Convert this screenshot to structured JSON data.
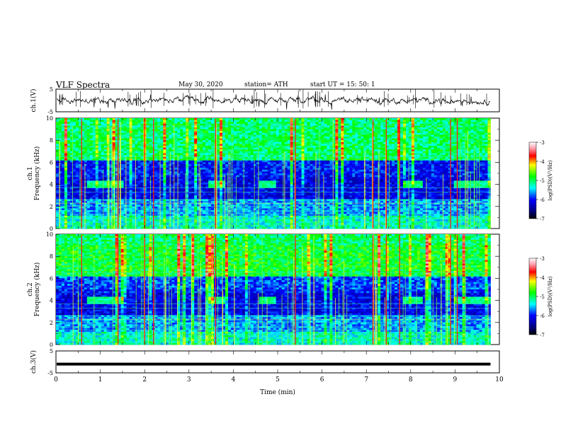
{
  "header": {
    "title": "VLF Spectra",
    "date": "May 30, 2020",
    "station": "station= ATH",
    "start": "start  UT  =    15: 50: 1"
  },
  "chart_data": [
    {
      "id": "ch1-waveform",
      "type": "line",
      "ylabel": "ch.1(V)",
      "ylim": [
        -5,
        5
      ],
      "yticks": [
        "5",
        "-5"
      ],
      "xlim": [
        0,
        10
      ],
      "description_mean_level": 0
    },
    {
      "id": "ch1-spectrogram",
      "type": "heatmap",
      "ylabel": "ch.1\nFrequency (kHz)",
      "ylim": [
        0,
        10
      ],
      "yticks": [
        "10",
        "8",
        "6",
        "4",
        "2",
        "0"
      ],
      "xlim": [
        0,
        10
      ],
      "colorbar": {
        "label": "log(PSD)(V²/Hz)",
        "range": [
          -7,
          -3
        ],
        "ticks": [
          "-3",
          "-4",
          "-5",
          "-6",
          "-7"
        ]
      },
      "features": {
        "band_4khz_segments_min": [
          [
            0.7,
            1.5
          ],
          [
            3.45,
            3.8
          ],
          [
            4.6,
            4.95
          ],
          [
            7.8,
            8.3
          ],
          [
            9.0,
            9.8
          ]
        ],
        "strong_impulse_times_min": [
          0.58,
          1.4,
          2.0,
          2.2,
          3.6,
          5.4,
          7.15,
          7.45,
          7.75,
          8.9,
          9.05
        ]
      }
    },
    {
      "id": "ch2-spectrogram",
      "type": "heatmap",
      "ylabel": "ch.2\nFrequency (kHz)",
      "ylim": [
        0,
        10
      ],
      "yticks": [
        "10",
        "8",
        "6",
        "4",
        "2",
        "0"
      ],
      "xlim": [
        0,
        10
      ],
      "colorbar": {
        "label": "log(PSD)(V²/Hz)",
        "range": [
          -7,
          -3
        ],
        "ticks": [
          "-3",
          "-4",
          "-5",
          "-6",
          "-7"
        ]
      },
      "features": {
        "band_4khz_segments_min": [
          [
            0.7,
            1.5
          ],
          [
            3.45,
            3.8
          ],
          [
            4.6,
            4.95
          ],
          [
            7.8,
            8.3
          ],
          [
            9.0,
            9.8
          ]
        ],
        "strong_impulse_times_min": [
          0.58,
          1.4,
          2.0,
          2.2,
          3.6,
          5.4,
          7.15,
          7.45,
          7.75,
          8.9,
          9.05
        ]
      }
    },
    {
      "id": "ch3-waveform",
      "type": "line",
      "ylabel": "ch.3(V)",
      "ylim": [
        -5,
        5
      ],
      "yticks": [
        "5",
        "-5"
      ],
      "xlim": [
        0,
        10
      ],
      "xlabel": "Time (min)",
      "xticks": [
        "0",
        "1",
        "2",
        "3",
        "4",
        "5",
        "6",
        "7",
        "8",
        "9",
        "10"
      ],
      "level": -1
    }
  ]
}
